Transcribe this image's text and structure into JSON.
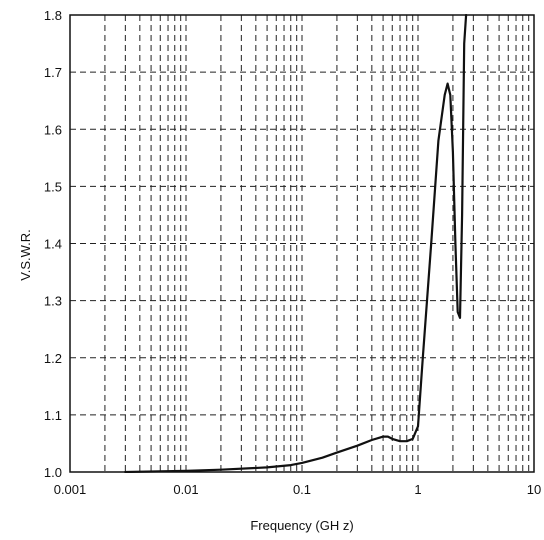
{
  "chart_data": {
    "type": "line",
    "xscale": "log",
    "xlim": [
      0.001,
      10
    ],
    "ylim": [
      1.0,
      1.8
    ],
    "xlabel": "Frequency (GH z)",
    "ylabel": "V.S.W.R.",
    "x_ticks": [
      "0.001",
      "0.01",
      "0.1",
      "1",
      "10"
    ],
    "y_ticks": [
      "1.0",
      "1.1",
      "1.2",
      "1.3",
      "1.4",
      "1.5",
      "1.6",
      "1.7",
      "1.8"
    ],
    "grid": true,
    "series": [
      {
        "x": [
          0.003,
          0.01,
          0.02,
          0.05,
          0.08,
          0.1,
          0.15,
          0.2,
          0.3,
          0.4,
          0.5,
          0.55,
          0.6,
          0.7,
          0.8,
          0.9,
          1.0,
          1.1,
          1.3,
          1.5,
          1.7,
          1.8,
          1.9,
          2.0,
          2.1,
          2.2,
          2.3,
          2.4,
          2.5,
          2.6
        ],
        "y": [
          1.0,
          1.002,
          1.004,
          1.008,
          1.012,
          1.016,
          1.025,
          1.034,
          1.046,
          1.056,
          1.062,
          1.062,
          1.058,
          1.054,
          1.054,
          1.058,
          1.08,
          1.2,
          1.4,
          1.58,
          1.66,
          1.68,
          1.66,
          1.56,
          1.4,
          1.28,
          1.27,
          1.45,
          1.75,
          1.8
        ]
      }
    ]
  }
}
